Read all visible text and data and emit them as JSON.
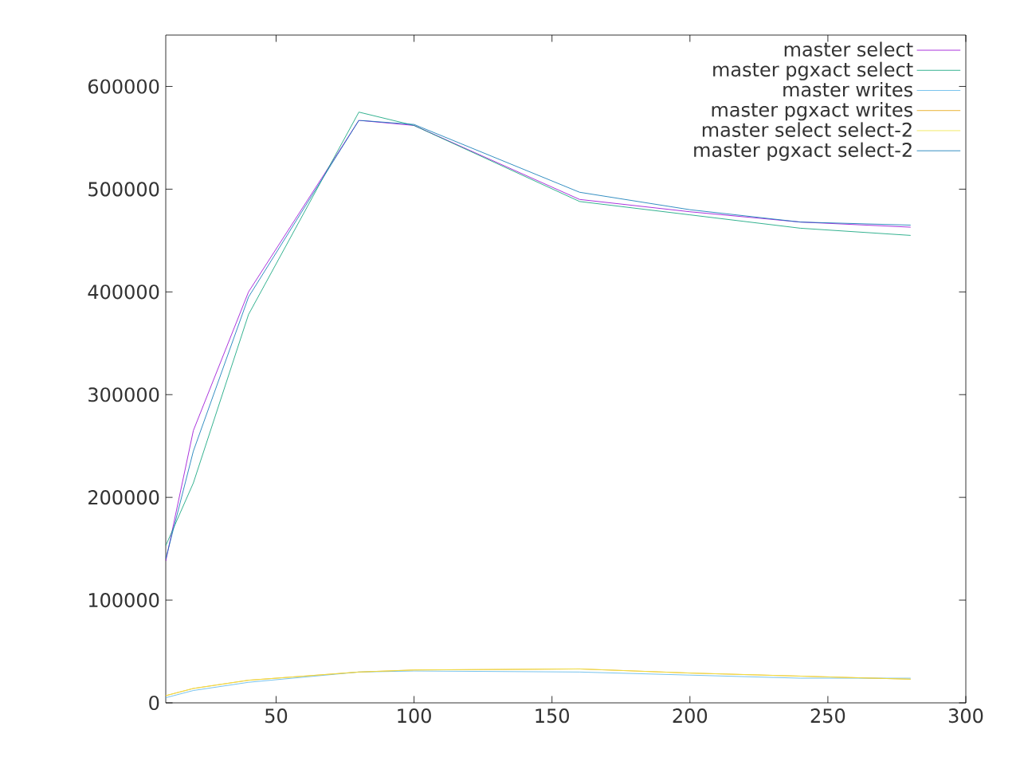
{
  "chart_data": {
    "type": "line",
    "x": [
      10,
      20,
      40,
      80,
      100,
      160,
      200,
      240,
      280
    ],
    "xlim": [
      10,
      300
    ],
    "xticks": [
      50,
      100,
      150,
      200,
      250,
      300
    ],
    "ylim": [
      0,
      650000
    ],
    "yticks": [
      0,
      100000,
      200000,
      300000,
      400000,
      500000,
      600000
    ],
    "legend": "top right",
    "grid": false,
    "marker": "none",
    "line_style": "solid",
    "series": [
      {
        "name": "master select",
        "color": "#9400d3",
        "values": [
          138000,
          265000,
          400000,
          567000,
          562000,
          490000,
          478000,
          468000,
          463000
        ]
      },
      {
        "name": "master pgxact select",
        "color": "#009e73",
        "values": [
          153000,
          214000,
          378000,
          575000,
          562000,
          488000,
          475000,
          462000,
          455000
        ]
      },
      {
        "name": "master writes",
        "color": "#56b4e9",
        "values": [
          5000,
          12000,
          20000,
          30000,
          31000,
          30000,
          27000,
          24000,
          24000
        ]
      },
      {
        "name": "master pgxact writes",
        "color": "#e69f00",
        "values": [
          7000,
          14000,
          22000,
          30000,
          32000,
          33000,
          29000,
          26000,
          23000
        ]
      },
      {
        "name": "master select select-2",
        "color": "#f0e442",
        "values": [
          7000,
          14000,
          22000,
          30000,
          32000,
          33000,
          29000,
          26000,
          23000
        ]
      },
      {
        "name": "master pgxact select-2",
        "color": "#0072b2",
        "values": [
          140000,
          245000,
          395000,
          567000,
          563000,
          497000,
          480000,
          468000,
          465000
        ]
      }
    ]
  }
}
